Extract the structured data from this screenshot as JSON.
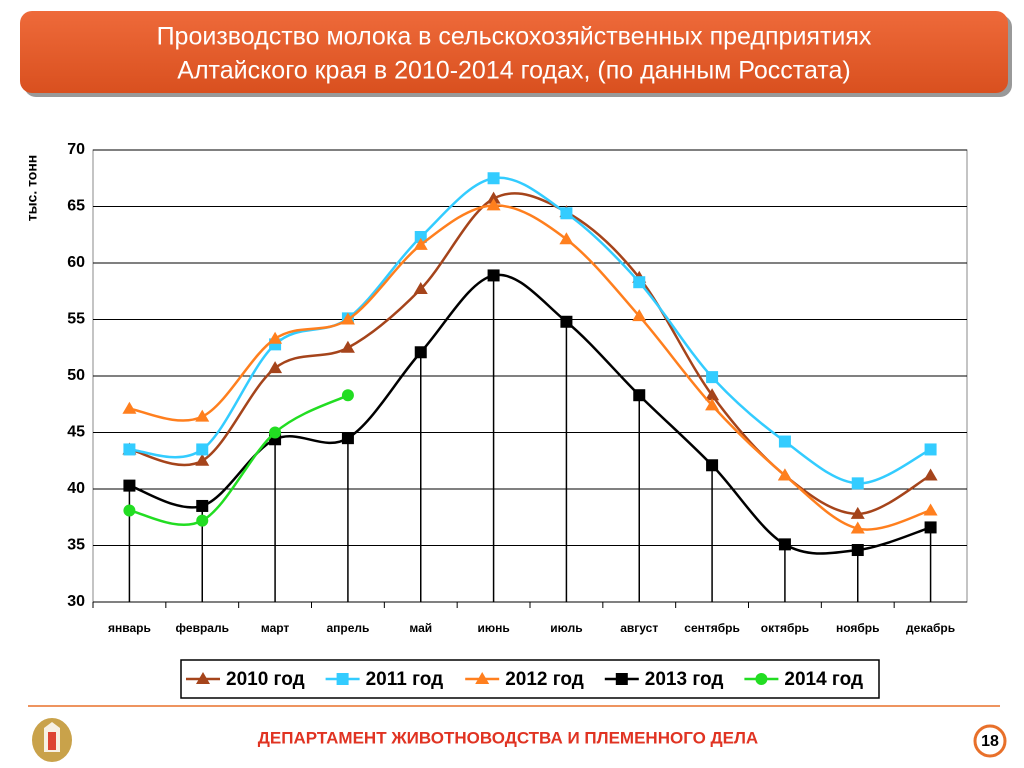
{
  "chart_data": {
    "type": "line",
    "title": [
      "Производство молока в сельскохозяйственных предприятиях",
      "Алтайского края в 2010-2014 годах, (по данным Росстата)"
    ],
    "ylabel": "тыс. тонн",
    "categories": [
      "январь",
      "февраль",
      "март",
      "апрель",
      "май",
      "июнь",
      "июль",
      "август",
      "сентябрь",
      "октябрь",
      "ноябрь",
      "декабрь"
    ],
    "series": [
      {
        "name": "2010 год",
        "color": "#a5441b",
        "marker": "triangle",
        "values": [
          43.5,
          42.5,
          50.7,
          52.5,
          57.7,
          65.7,
          64.5,
          58.7,
          48.3,
          41.2,
          37.8,
          41.2
        ]
      },
      {
        "name": "2011 год",
        "color": "#33ccff",
        "marker": "square",
        "values": [
          43.5,
          43.5,
          52.8,
          55.1,
          62.3,
          67.5,
          64.4,
          58.3,
          49.9,
          44.2,
          40.5,
          43.5
        ]
      },
      {
        "name": "2012 год",
        "color": "#ff7f1e",
        "marker": "triangle",
        "values": [
          47.1,
          46.4,
          53.3,
          55.0,
          61.6,
          65.1,
          62.1,
          55.3,
          47.4,
          41.2,
          36.5,
          38.1
        ]
      },
      {
        "name": "2013 год",
        "color": "#000000",
        "marker": "square",
        "values": [
          40.3,
          38.5,
          44.4,
          44.5,
          52.1,
          58.9,
          54.8,
          48.3,
          42.1,
          35.1,
          34.6,
          36.6
        ]
      },
      {
        "name": "2014 год",
        "color": "#22dd22",
        "marker": "circle",
        "values": [
          38.1,
          37.2,
          45.0,
          48.3,
          null,
          null,
          null,
          null,
          null,
          null,
          null,
          null
        ]
      }
    ],
    "ylim": [
      30,
      70
    ],
    "yticks": [
      30,
      35,
      40,
      45,
      50,
      55,
      60,
      65,
      70
    ],
    "grid": true,
    "legend": "bottom"
  },
  "footer": "ДЕПАРТАМЕНТ ЖИВОТНОВОДСТВА И ПЛЕМЕННОГО ДЕЛА",
  "page_number": 18
}
